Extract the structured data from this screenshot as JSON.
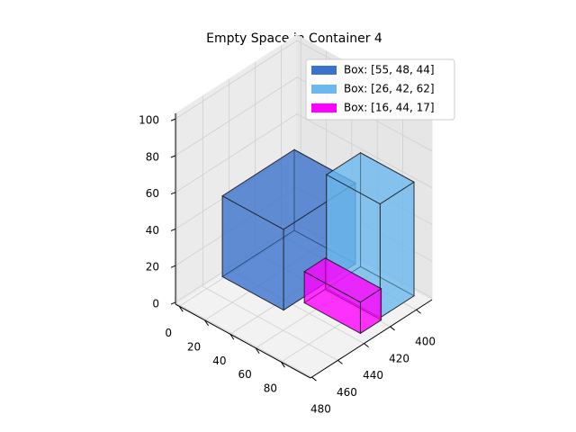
{
  "chart_data": {
    "type": "box3d",
    "title": "Empty Space in Container 4",
    "series": [
      {
        "name": "Box: [55, 48, 44]",
        "color": "#3b73cc",
        "origin": [
          0,
          393,
          0
        ],
        "size": [
          48,
          55,
          44
        ]
      },
      {
        "name": "Box: [26, 42, 62]",
        "color": "#6cb8ec",
        "origin": [
          52,
          393,
          0
        ],
        "size": [
          42,
          26,
          62
        ]
      },
      {
        "name": "Box: [16, 44, 17]",
        "color": "#ff00ff",
        "origin": [
          52,
          420,
          0
        ],
        "size": [
          44,
          16,
          17
        ]
      }
    ],
    "xlim": [
      -3,
      103
    ],
    "ylim": [
      388,
      481
    ],
    "zlim": [
      -1,
      103
    ],
    "xticks": [
      0,
      20,
      40,
      60,
      80
    ],
    "yticks": [
      400,
      420,
      440,
      460,
      480
    ],
    "zticks": [
      0,
      20,
      40,
      60,
      80,
      100
    ],
    "grid": true,
    "legend": "upper right"
  }
}
